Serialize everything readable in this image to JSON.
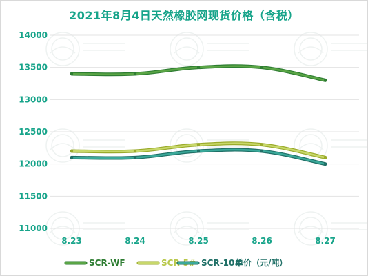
{
  "chart_data": {
    "type": "line",
    "title": "2021年8月4日天然橡胶网现货价格（含税）",
    "categories": [
      "8.23",
      "8.24",
      "8.25",
      "8.26",
      "8.27"
    ],
    "ylim": [
      11000,
      14000
    ],
    "yticks": [
      "11000",
      "11500",
      "12000",
      "12500",
      "13000",
      "13500",
      "14000"
    ],
    "grid": true,
    "legend_position": "bottom",
    "unit_label": "单价（元/吨）",
    "series": [
      {
        "name": "SCR-WF",
        "values": [
          13400,
          13400,
          13500,
          13500,
          13300
        ],
        "color": "#5aa545",
        "line_color": "#2e7d32"
      },
      {
        "name": "SCR-5#",
        "values": [
          12200,
          12200,
          12300,
          12300,
          12100
        ],
        "color": "#c8d86a",
        "line_color": "#9aaa2a"
      },
      {
        "name": "SCR-10#",
        "values": [
          12100,
          12100,
          12200,
          12200,
          12000
        ],
        "color": "#3aa99a",
        "line_color": "#1f6f66"
      }
    ]
  }
}
